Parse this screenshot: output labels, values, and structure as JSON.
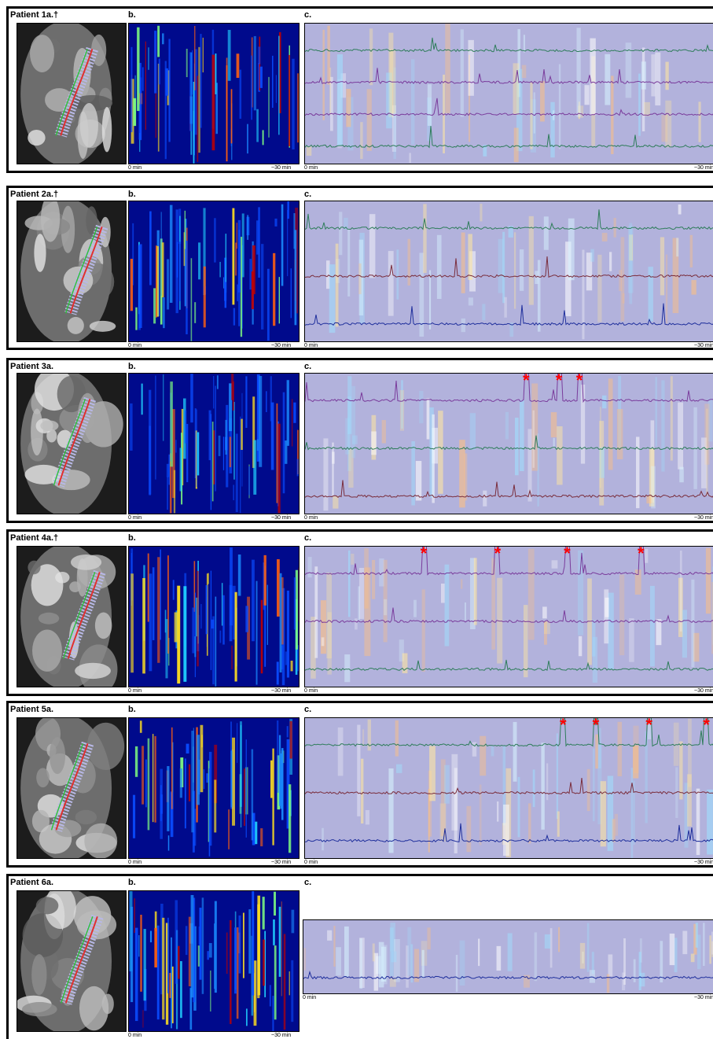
{
  "figure": {
    "axis_start": "0 min",
    "axis_end": "~30 min",
    "panel_b_label": "b.",
    "panel_c_label": "c.",
    "peak_marker": "*"
  },
  "colors": {
    "trace_background": "#b2b2dc",
    "heatmap_background": "#000a8c",
    "marker": "#ff0000",
    "trace_green": "#2f7d5b",
    "trace_purple": "#7a3c9c",
    "trace_maroon": "#7a2d3c",
    "trace_blue": "#1f2f9c"
  },
  "patients": [
    {
      "title": "Patient 1a.†",
      "traces": [
        "green",
        "purple",
        "purple",
        "green"
      ],
      "peaks": []
    },
    {
      "title": "Patient 2a.†",
      "traces": [
        "green",
        "maroon",
        "blue"
      ],
      "peaks": []
    },
    {
      "title": "Patient 3a.",
      "traces": [
        "purple",
        "green",
        "maroon"
      ],
      "peaks": [
        0.54,
        0.62,
        0.67
      ]
    },
    {
      "title": "Patient 4a.†",
      "traces": [
        "purple",
        "purple",
        "green"
      ],
      "peaks": [
        0.29,
        0.47,
        0.64,
        0.82
      ]
    },
    {
      "title": "Patient 5a.",
      "traces": [
        "green",
        "maroon",
        "blue"
      ],
      "peaks": [
        0.63,
        0.71,
        0.84,
        0.98
      ]
    },
    {
      "title": "Patient 6a.",
      "traces": [
        "blue"
      ],
      "peaks": []
    }
  ]
}
